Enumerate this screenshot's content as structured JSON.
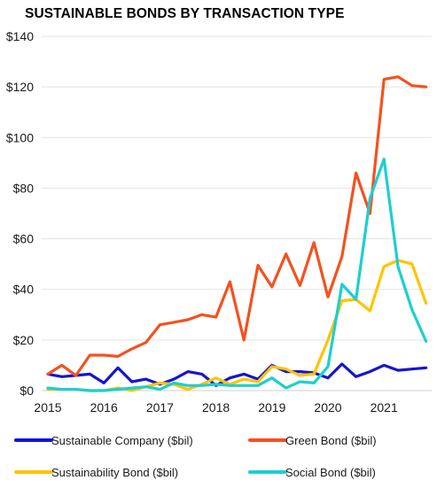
{
  "chart_data": {
    "type": "line",
    "title": "SUSTAINABLE BONDS BY TRANSACTION TYPE",
    "xlabel": "",
    "ylabel": "",
    "xlim": [
      2015,
      2022
    ],
    "ylim": [
      0,
      140
    ],
    "x_ticks": [
      "2015",
      "2016",
      "2017",
      "2018",
      "2019",
      "2020",
      "2021"
    ],
    "y_ticks": [
      "$0",
      "$20",
      "$40",
      "$60",
      "$80",
      "$100",
      "$120",
      "$140"
    ],
    "grid": "horizontal",
    "legend_position": "bottom",
    "x": [
      2015.0,
      2015.25,
      2015.5,
      2015.75,
      2016.0,
      2016.25,
      2016.5,
      2016.75,
      2017.0,
      2017.25,
      2017.5,
      2017.75,
      2018.0,
      2018.25,
      2018.5,
      2018.75,
      2019.0,
      2019.25,
      2019.5,
      2019.75,
      2020.0,
      2020.25,
      2020.5,
      2020.75,
      2021.0,
      2021.25,
      2021.5,
      2021.75
    ],
    "series": [
      {
        "name": "Sustainable Company ($bil)",
        "color": "#1414d2",
        "values": [
          6.5,
          5.5,
          6.0,
          6.5,
          3.0,
          9.0,
          3.5,
          4.5,
          2.5,
          4.5,
          7.5,
          6.5,
          2.0,
          5.0,
          6.5,
          4.5,
          10.0,
          7.5,
          7.5,
          7.0,
          5.0,
          10.5,
          5.5,
          7.5,
          10.0,
          8.0,
          8.5,
          9.0
        ]
      },
      {
        "name": "Green Bond ($bil)",
        "color": "#f4511e",
        "values": [
          6.5,
          10.0,
          6.0,
          14.0,
          14.0,
          13.5,
          16.5,
          19.0,
          26.0,
          27.0,
          28.0,
          30.0,
          29.0,
          43.0,
          20.0,
          49.5,
          41.0,
          54.0,
          41.5,
          58.5,
          37.0,
          53.0,
          86.0,
          70.0,
          123.0,
          124.0,
          120.5,
          120.0
        ]
      },
      {
        "name": "Sustainability Bond ($bil)",
        "color": "#ffc400",
        "values": [
          0.5,
          0.5,
          0.5,
          0.0,
          0.0,
          1.0,
          0.0,
          1.5,
          3.0,
          2.5,
          0.5,
          2.5,
          5.0,
          2.5,
          4.5,
          3.5,
          9.5,
          8.5,
          6.0,
          6.5,
          20.0,
          35.5,
          36.0,
          31.5,
          49.0,
          51.5,
          50.0,
          34.5
        ]
      },
      {
        "name": "Social Bond ($bil)",
        "color": "#1ccfd0",
        "values": [
          1.0,
          0.5,
          0.5,
          0.0,
          0.0,
          0.5,
          1.0,
          1.5,
          0.5,
          3.0,
          2.0,
          2.0,
          2.5,
          2.0,
          2.0,
          2.0,
          5.0,
          1.0,
          3.5,
          3.0,
          9.5,
          42.0,
          36.0,
          76.0,
          91.5,
          49.0,
          32.0,
          19.5
        ]
      }
    ]
  }
}
